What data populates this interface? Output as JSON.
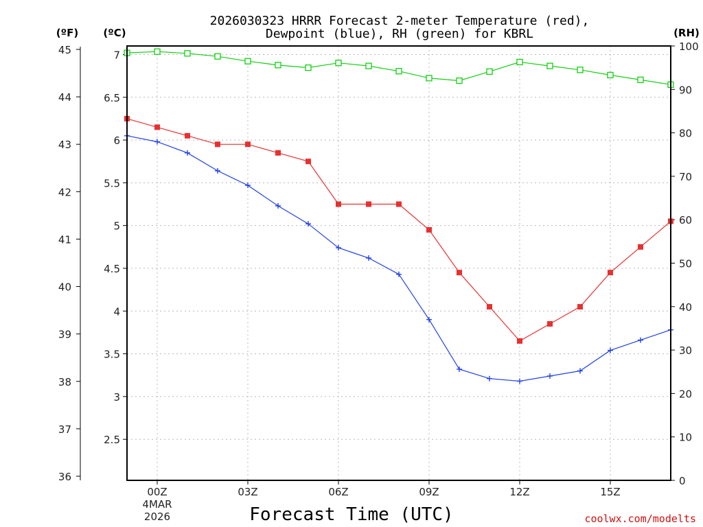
{
  "chart_data": {
    "type": "line",
    "title_line1": "2026030323 HRRR Forecast 2-meter Temperature (red),",
    "title_line2": "Dewpoint (blue), RH (green) for KBRL",
    "xlabel": "Forecast Time (UTC)",
    "credit": "coolwx.com/modelts",
    "units": {
      "fahrenheit": "(ºF)",
      "celsius": "(ºC)",
      "rh": "(RH)"
    },
    "x_ticks": [
      {
        "hour": 0,
        "label": "00Z",
        "sub1": "4MAR",
        "sub2": "2026"
      },
      {
        "hour": 3,
        "label": "03Z",
        "sub1": "",
        "sub2": ""
      },
      {
        "hour": 6,
        "label": "06Z",
        "sub1": "",
        "sub2": ""
      },
      {
        "hour": 9,
        "label": "09Z",
        "sub1": "",
        "sub2": ""
      },
      {
        "hour": 12,
        "label": "12Z",
        "sub1": "",
        "sub2": ""
      },
      {
        "hour": 15,
        "label": "15Z",
        "sub1": "",
        "sub2": ""
      }
    ],
    "xlim": [
      -1,
      17
    ],
    "celsius_axis": {
      "range": [
        2.02,
        7.1
      ],
      "ticks": [
        "2.5",
        "3",
        "3.5",
        "4",
        "4.5",
        "5",
        "5.5",
        "6",
        "6.5",
        "7"
      ]
    },
    "fahrenheit_axis": {
      "range": [
        36,
        45
      ],
      "ticks": [
        "36",
        "37",
        "38",
        "39",
        "40",
        "41",
        "42",
        "43",
        "44",
        "45"
      ]
    },
    "rh_axis": {
      "range": [
        0,
        100
      ],
      "ticks": [
        "0",
        "10",
        "20",
        "30",
        "40",
        "50",
        "60",
        "70",
        "80",
        "90",
        "100"
      ]
    },
    "x": [
      -1,
      0,
      1,
      2,
      3,
      4,
      5,
      6,
      7,
      8,
      9,
      10,
      11,
      12,
      13,
      14,
      15,
      16,
      17
    ],
    "series": [
      {
        "name": "Temperature",
        "axis": "celsius",
        "color": "#e83030",
        "marker": "filled-square",
        "values": [
          6.25,
          6.15,
          6.05,
          5.95,
          5.95,
          5.85,
          5.75,
          5.25,
          5.25,
          5.25,
          4.95,
          4.45,
          4.05,
          3.65,
          3.85,
          4.05,
          4.45,
          4.75,
          5.05
        ]
      },
      {
        "name": "Dewpoint",
        "axis": "celsius",
        "color": "#2040e8",
        "marker": "plus",
        "values": [
          6.05,
          5.98,
          5.85,
          5.64,
          5.47,
          5.23,
          5.02,
          4.74,
          4.62,
          4.43,
          3.9,
          3.32,
          3.21,
          3.18,
          3.24,
          3.3,
          3.54,
          3.66,
          3.78
        ]
      },
      {
        "name": "RH",
        "axis": "rh",
        "color": "#10d010",
        "marker": "open-square",
        "values": [
          98.4,
          98.7,
          98.3,
          97.6,
          96.5,
          95.6,
          95.0,
          96.1,
          95.4,
          94.2,
          92.6,
          92.0,
          94.1,
          96.3,
          95.4,
          94.5,
          93.3,
          92.2,
          91.1
        ]
      }
    ],
    "grid": true
  }
}
